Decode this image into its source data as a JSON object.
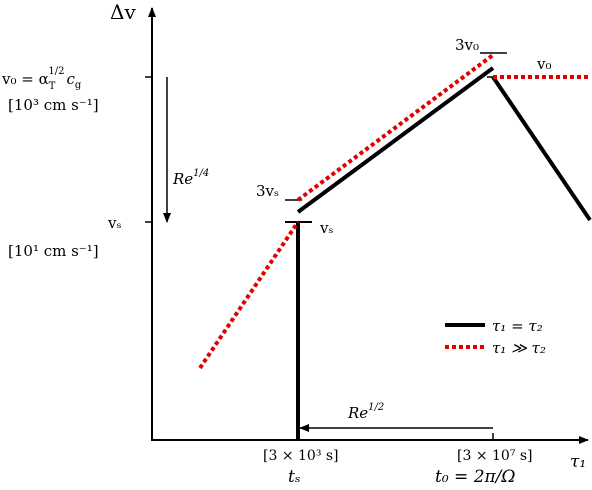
{
  "axes": {
    "y_label": "Δv",
    "x_label": "τ₁"
  },
  "y_labels": {
    "v0": {
      "main": "v₀ = α",
      "sub": "T",
      "sup": "1/2",
      "after": "c",
      "after_sub": "g"
    },
    "v0_unit": "[10³ cm s⁻¹]",
    "vs": "vₛ",
    "vs_unit": "[10¹ cm s⁻¹]"
  },
  "annotations": {
    "re_quarter": {
      "base": "Re",
      "sup": "1/4"
    },
    "three_vs": "3vₛ",
    "vs_right": "vₛ",
    "three_v0": "3v₀",
    "v0_right": "v₀",
    "re_half": {
      "base": "Re",
      "sup": "1/2"
    }
  },
  "x_labels": {
    "ts_unit": "[3 × 10³ s]",
    "ts": "tₛ",
    "t0_unit": "[3 × 10⁷ s]",
    "t0": "t₀ = 2π/Ω"
  },
  "legend": {
    "black": "τ₁ = τ₂",
    "red": "τ₁ ≫ τ₂"
  }
}
